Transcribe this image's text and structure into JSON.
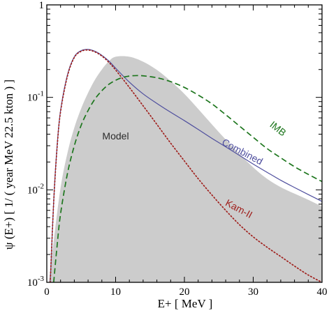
{
  "chart_data": {
    "type": "line",
    "xlabel": "E+ [ MeV ]",
    "ylabel": "ψ (E+)   [ 1/ ( year MeV 22.5 kton ) ]",
    "xlim": [
      0,
      40
    ],
    "ylim": [
      0.001,
      1
    ],
    "yscale": "log",
    "grid": false,
    "x_ticks": [
      "0",
      "10",
      "20",
      "30",
      "40"
    ],
    "y_ticks": [
      {
        "value": 0.001,
        "base": "10",
        "exp": "-3"
      },
      {
        "value": 0.01,
        "base": "10",
        "exp": "-2"
      },
      {
        "value": 0.1,
        "base": "10",
        "exp": "-1"
      },
      {
        "value": 1,
        "base": "1",
        "exp": ""
      }
    ],
    "colors": {
      "model": "#cccccc",
      "combined": "#4f4f9e",
      "kam": "#a0201d",
      "imb": "#1d761d"
    },
    "series": [
      {
        "name": "Model",
        "style": "filled-area",
        "x": [
          0.3,
          1,
          2,
          3,
          4,
          5,
          6,
          7,
          8,
          9,
          10,
          12,
          14,
          16,
          18,
          20,
          22,
          24,
          26,
          28,
          30,
          32,
          34,
          36,
          38,
          40
        ],
        "y": [
          0.001,
          0.0028,
          0.0105,
          0.025,
          0.047,
          0.076,
          0.112,
          0.155,
          0.2,
          0.245,
          0.275,
          0.275,
          0.243,
          0.198,
          0.15,
          0.109,
          0.075,
          0.051,
          0.035,
          0.0245,
          0.0175,
          0.0132,
          0.0107,
          0.0091,
          0.0078,
          0.0066
        ]
      },
      {
        "name": "Combined",
        "style": "solid",
        "x": [
          0.5,
          1,
          1.5,
          2,
          3,
          4,
          5,
          6,
          7,
          8,
          9,
          10,
          12,
          14,
          16,
          18,
          20,
          22,
          24,
          26,
          28,
          30,
          32,
          34,
          36,
          38,
          40
        ],
        "y": [
          0.001,
          0.0075,
          0.03,
          0.072,
          0.175,
          0.275,
          0.32,
          0.33,
          0.315,
          0.285,
          0.248,
          0.207,
          0.146,
          0.109,
          0.086,
          0.069,
          0.056,
          0.045,
          0.036,
          0.0292,
          0.0236,
          0.019,
          0.0155,
          0.0127,
          0.0106,
          0.0089,
          0.0075
        ]
      },
      {
        "name": "Kam-II",
        "style": "dotted",
        "x": [
          0.5,
          1,
          1.5,
          2,
          3,
          4,
          5,
          6,
          7,
          8,
          9,
          10,
          12,
          14,
          16,
          18,
          20,
          22,
          24,
          26,
          28,
          30,
          32,
          34,
          36,
          38,
          40
        ],
        "y": [
          0.001,
          0.0073,
          0.029,
          0.07,
          0.17,
          0.27,
          0.315,
          0.325,
          0.31,
          0.28,
          0.24,
          0.198,
          0.128,
          0.081,
          0.051,
          0.032,
          0.0205,
          0.0132,
          0.0088,
          0.006,
          0.0042,
          0.0031,
          0.0024,
          0.0019,
          0.0015,
          0.0012,
          0.0009
        ]
      },
      {
        "name": "IMB",
        "style": "dashed",
        "x": [
          1,
          1.5,
          2,
          3,
          4,
          5,
          6,
          7,
          8,
          9,
          10,
          11,
          12,
          13,
          14,
          16,
          18,
          20,
          22,
          24,
          26,
          28,
          30,
          32,
          34,
          36,
          38,
          40
        ],
        "y": [
          0.001,
          0.0025,
          0.0055,
          0.015,
          0.03,
          0.05,
          0.072,
          0.096,
          0.118,
          0.138,
          0.153,
          0.164,
          0.17,
          0.172,
          0.171,
          0.163,
          0.148,
          0.128,
          0.106,
          0.085,
          0.065,
          0.049,
          0.037,
          0.028,
          0.0222,
          0.0178,
          0.0147,
          0.0123
        ]
      }
    ],
    "annotations": [
      {
        "text": "Model",
        "x": 10,
        "y": 0.035,
        "color": "#2b2b2b",
        "rotate": 0
      },
      {
        "text": "Combined",
        "x": 28.2,
        "y": 0.024,
        "color": "#4f4f9e",
        "rotate": 28
      },
      {
        "text": "Kam-II",
        "x": 27.7,
        "y": 0.0058,
        "color": "#a0201d",
        "rotate": 28
      },
      {
        "text": "IMB",
        "x": 33.3,
        "y": 0.043,
        "color": "#1d761d",
        "rotate": 38
      }
    ]
  }
}
